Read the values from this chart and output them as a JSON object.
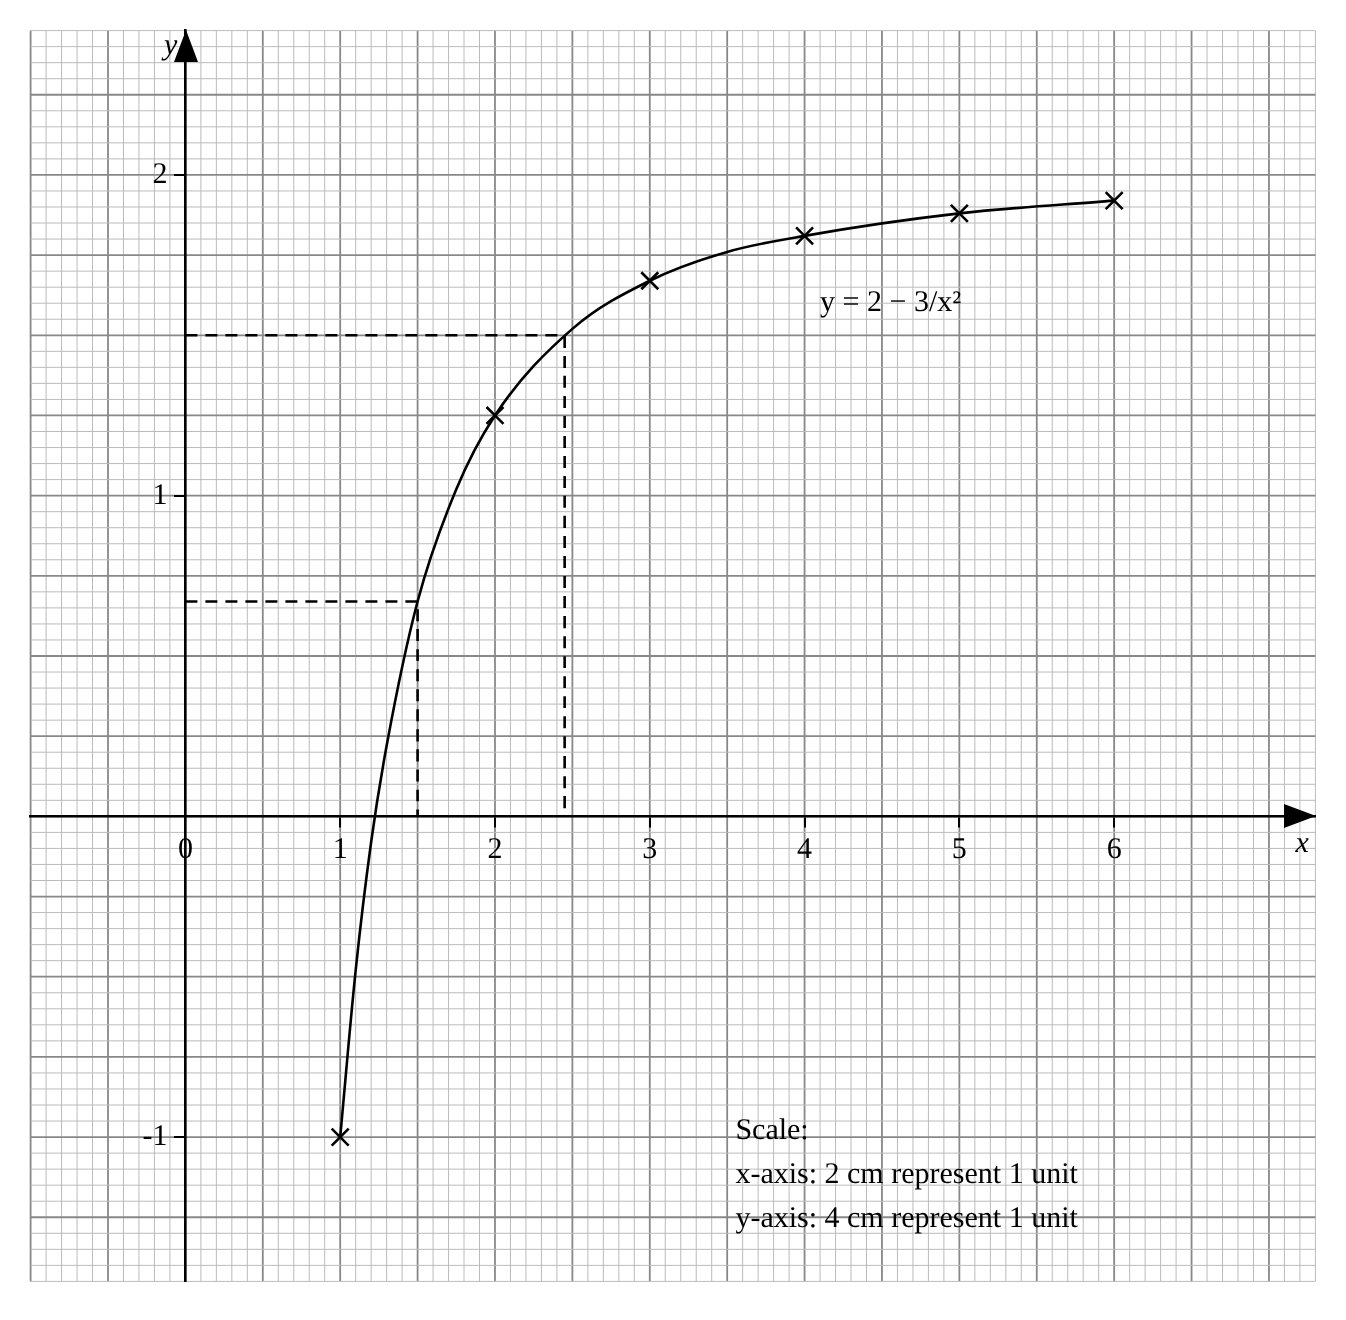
{
  "chart_data": {
    "type": "line",
    "xlabel": "x",
    "ylabel": "y",
    "xlim": [
      -1,
      7.3
    ],
    "ylim": [
      -1.45,
      2.45
    ],
    "xticks": [
      0,
      1,
      2,
      3,
      4,
      5,
      6
    ],
    "yticks": [
      -1,
      1,
      2
    ],
    "grid": true,
    "legend": false,
    "series": [
      {
        "type": "line",
        "color": "#000000",
        "marker": "none",
        "line_style": "solid",
        "x": [
          1,
          1.1,
          1.2,
          1.3,
          1.5,
          1.75,
          2,
          2.5,
          3,
          3.5,
          4,
          5,
          6
        ],
        "values": [
          -1,
          -0.48,
          -0.08,
          0.22,
          0.67,
          1.02,
          1.25,
          1.52,
          1.67,
          1.76,
          1.81,
          1.88,
          1.92
        ]
      },
      {
        "type": "scatter",
        "color": "#000000",
        "marker": "cross",
        "x": [
          1,
          2,
          3,
          4,
          5,
          6
        ],
        "values": [
          -1,
          1.25,
          1.67,
          1.81,
          1.88,
          1.92
        ]
      },
      {
        "type": "line",
        "color": "#000000",
        "marker": "none",
        "line_style": "dashed",
        "x": [
          0,
          1.5,
          1.5
        ],
        "values": [
          0.67,
          0.67,
          0
        ]
      },
      {
        "type": "line",
        "color": "#000000",
        "marker": "none",
        "line_style": "dashed",
        "x": [
          0,
          2.45,
          2.45
        ],
        "values": [
          1.5,
          1.5,
          0
        ]
      }
    ],
    "annotations": [
      "y = 2 − 3/x²",
      "Scale:",
      "x-axis: 2 cm represent 1 unit",
      "y-axis: 4 cm represent 1 unit"
    ]
  }
}
